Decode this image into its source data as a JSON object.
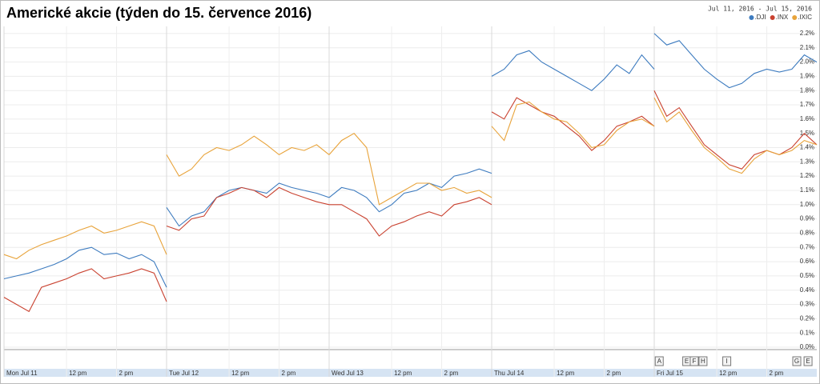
{
  "chart_data": {
    "type": "line",
    "title": "Americké akcie (týden do 15. července 2016)",
    "date_range": "Jul 11, 2016  -  Jul 15, 2016",
    "x": [
      0,
      0.5,
      1,
      1.5,
      2,
      2.5,
      3,
      3.5,
      4,
      4.5,
      5,
      5.5,
      6,
      6.5,
      6.5,
      6.5,
      7,
      7.5,
      8,
      8.5,
      9,
      9.5,
      10,
      10.5,
      11,
      11.5,
      12,
      12.5,
      13,
      13,
      13,
      13.5,
      14,
      14.5,
      15,
      15.5,
      16,
      16.5,
      17,
      17.5,
      18,
      18.5,
      19,
      19.5,
      19.5,
      19.5,
      20,
      20.5,
      21,
      21.5,
      22,
      22.5,
      23,
      23.5,
      24,
      24.5,
      25,
      25.5,
      26,
      26,
      26,
      26.5,
      27,
      27.5,
      28,
      28.5,
      29,
      29.5,
      30,
      30.5,
      31,
      31.5,
      32,
      32.5
    ],
    "series": [
      {
        "name": ".DJI",
        "color": "#3d7bbf",
        "values": [
          0.48,
          0.5,
          0.52,
          0.55,
          0.58,
          0.62,
          0.68,
          0.7,
          0.65,
          0.66,
          0.62,
          0.65,
          0.6,
          0.42,
          null,
          0.98,
          0.85,
          0.92,
          0.95,
          1.05,
          1.1,
          1.12,
          1.1,
          1.08,
          1.15,
          1.12,
          1.1,
          1.08,
          1.05,
          null,
          1.05,
          1.12,
          1.1,
          1.05,
          0.95,
          1.0,
          1.08,
          1.1,
          1.15,
          1.12,
          1.2,
          1.22,
          1.25,
          1.22,
          null,
          1.9,
          1.95,
          2.05,
          2.08,
          2.0,
          1.95,
          1.9,
          1.85,
          1.8,
          1.88,
          1.98,
          1.92,
          2.05,
          1.95,
          null,
          2.2,
          2.12,
          2.15,
          2.05,
          1.95,
          1.88,
          1.82,
          1.85,
          1.92,
          1.95,
          1.93,
          1.95,
          2.05,
          2.0
        ]
      },
      {
        "name": ".INX",
        "color": "#c9412f",
        "values": [
          0.35,
          0.3,
          0.25,
          0.42,
          0.45,
          0.48,
          0.52,
          0.55,
          0.48,
          0.5,
          0.52,
          0.55,
          0.52,
          0.32,
          null,
          0.85,
          0.82,
          0.9,
          0.92,
          1.05,
          1.08,
          1.12,
          1.1,
          1.05,
          1.12,
          1.08,
          1.05,
          1.02,
          1.0,
          null,
          1.0,
          1.0,
          0.95,
          0.9,
          0.78,
          0.85,
          0.88,
          0.92,
          0.95,
          0.92,
          1.0,
          1.02,
          1.05,
          1.0,
          null,
          1.65,
          1.6,
          1.75,
          1.7,
          1.65,
          1.62,
          1.55,
          1.48,
          1.38,
          1.45,
          1.55,
          1.58,
          1.62,
          1.55,
          null,
          1.8,
          1.62,
          1.68,
          1.55,
          1.42,
          1.35,
          1.28,
          1.25,
          1.35,
          1.38,
          1.35,
          1.4,
          1.5,
          1.42
        ]
      },
      {
        "name": ".IXIC",
        "color": "#e8a33a",
        "values": [
          0.65,
          0.62,
          0.68,
          0.72,
          0.75,
          0.78,
          0.82,
          0.85,
          0.8,
          0.82,
          0.85,
          0.88,
          0.85,
          0.65,
          null,
          1.35,
          1.2,
          1.25,
          1.35,
          1.4,
          1.38,
          1.42,
          1.48,
          1.42,
          1.35,
          1.4,
          1.38,
          1.42,
          1.35,
          null,
          1.35,
          1.45,
          1.5,
          1.4,
          1.0,
          1.05,
          1.1,
          1.15,
          1.15,
          1.1,
          1.12,
          1.08,
          1.1,
          1.05,
          null,
          1.55,
          1.45,
          1.7,
          1.72,
          1.65,
          1.6,
          1.58,
          1.5,
          1.4,
          1.42,
          1.52,
          1.58,
          1.6,
          1.55,
          null,
          1.75,
          1.58,
          1.65,
          1.52,
          1.4,
          1.33,
          1.25,
          1.22,
          1.32,
          1.38,
          1.35,
          1.38,
          1.45,
          1.42
        ]
      }
    ],
    "xlim": [
      0,
      32.5
    ],
    "xticks": [
      {
        "value": 0,
        "label": "Mon Jul 11"
      },
      {
        "value": 2.5,
        "label": "12 pm"
      },
      {
        "value": 4.5,
        "label": "2 pm"
      },
      {
        "value": 6.5,
        "label": "Tue Jul 12"
      },
      {
        "value": 9,
        "label": "12 pm"
      },
      {
        "value": 11,
        "label": "2 pm"
      },
      {
        "value": 13,
        "label": "Wed Jul 13"
      },
      {
        "value": 15.5,
        "label": "12 pm"
      },
      {
        "value": 17.5,
        "label": "2 pm"
      },
      {
        "value": 19.5,
        "label": "Thu Jul 14"
      },
      {
        "value": 22,
        "label": "12 pm"
      },
      {
        "value": 24,
        "label": "2 pm"
      },
      {
        "value": 26,
        "label": "Fri Jul 15"
      },
      {
        "value": 28.5,
        "label": "12 pm"
      },
      {
        "value": 30.5,
        "label": "2 pm"
      }
    ],
    "ylim": [
      0,
      2.25
    ],
    "yticks": [
      {
        "value": 0,
        "label": "0.0%"
      },
      {
        "value": 0.1,
        "label": "0.1%"
      },
      {
        "value": 0.2,
        "label": "0.2%"
      },
      {
        "value": 0.3,
        "label": "0.3%"
      },
      {
        "value": 0.4,
        "label": "0.4%"
      },
      {
        "value": 0.5,
        "label": "0.5%"
      },
      {
        "value": 0.6,
        "label": "0.6%"
      },
      {
        "value": 0.7,
        "label": "0.7%"
      },
      {
        "value": 0.8,
        "label": "0.8%"
      },
      {
        "value": 0.9,
        "label": "0.9%"
      },
      {
        "value": 1.0,
        "label": "1.0%"
      },
      {
        "value": 1.1,
        "label": "1.1%"
      },
      {
        "value": 1.2,
        "label": "1.2%"
      },
      {
        "value": 1.3,
        "label": "1.3%"
      },
      {
        "value": 1.4,
        "label": "1.4%"
      },
      {
        "value": 1.5,
        "label": "1.5%"
      },
      {
        "value": 1.6,
        "label": "1.6%"
      },
      {
        "value": 1.7,
        "label": "1.7%"
      },
      {
        "value": 1.8,
        "label": "1.8%"
      },
      {
        "value": 1.9,
        "label": "1.9%"
      },
      {
        "value": 2.0,
        "label": "2.0%"
      },
      {
        "value": 2.1,
        "label": "2.1%"
      },
      {
        "value": 2.2,
        "label": "2.2%"
      }
    ],
    "grid": true,
    "legend": "top-right",
    "annotations": [
      {
        "label": "A",
        "x": 26.2
      },
      {
        "label": "E",
        "x": 27.3
      },
      {
        "label": "F",
        "x": 27.6
      },
      {
        "label": "H",
        "x": 27.95
      },
      {
        "label": "I",
        "x": 28.9
      },
      {
        "label": "G",
        "x": 31.7
      },
      {
        "label": "E",
        "x": 32.15
      }
    ]
  }
}
